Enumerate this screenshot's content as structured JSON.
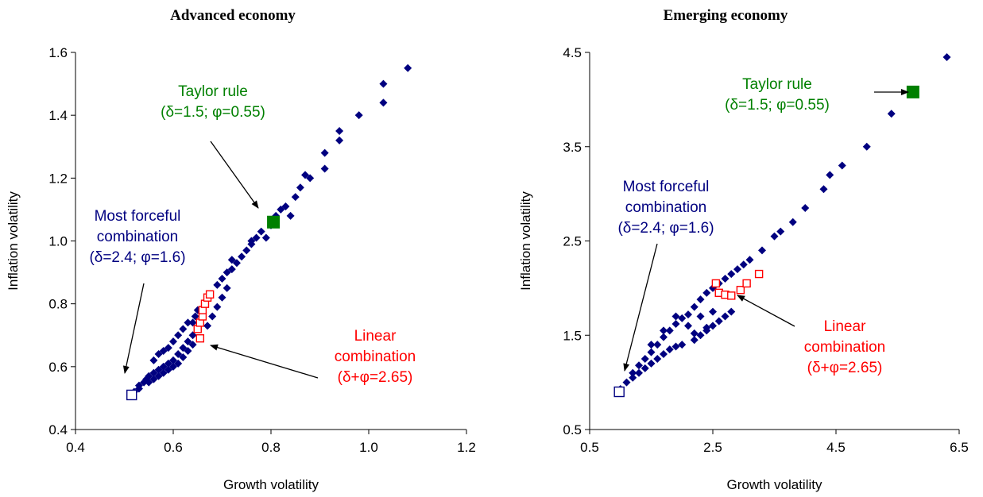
{
  "chart_data": [
    {
      "type": "scatter",
      "title": "Advanced economy",
      "xlabel": "Growth volatility",
      "ylabel": "Inflation volatility",
      "xlim": [
        0.4,
        1.2
      ],
      "ylim": [
        0.4,
        1.6
      ],
      "xticks": [
        "0.4",
        "0.6",
        "0.8",
        "1.0",
        "1.2"
      ],
      "yticks": [
        "0.4",
        "0.6",
        "0.8",
        "1.0",
        "1.2",
        "1.4",
        "1.6"
      ],
      "grid": false,
      "series": [
        {
          "marker": "diamond",
          "color": "#000080",
          "points": [
            [
              0.52,
              0.52
            ],
            [
              0.53,
              0.53
            ],
            [
              0.53,
              0.54
            ],
            [
              0.54,
              0.55
            ],
            [
              0.545,
              0.56
            ],
            [
              0.55,
              0.55
            ],
            [
              0.55,
              0.57
            ],
            [
              0.56,
              0.56
            ],
            [
              0.56,
              0.58
            ],
            [
              0.57,
              0.57
            ],
            [
              0.57,
              0.59
            ],
            [
              0.58,
              0.58
            ],
            [
              0.58,
              0.6
            ],
            [
              0.59,
              0.59
            ],
            [
              0.59,
              0.61
            ],
            [
              0.6,
              0.6
            ],
            [
              0.6,
              0.62
            ],
            [
              0.61,
              0.61
            ],
            [
              0.61,
              0.64
            ],
            [
              0.62,
              0.63
            ],
            [
              0.62,
              0.66
            ],
            [
              0.63,
              0.65
            ],
            [
              0.63,
              0.68
            ],
            [
              0.64,
              0.67
            ],
            [
              0.64,
              0.7
            ],
            [
              0.65,
              0.72
            ],
            [
              0.64,
              0.74
            ],
            [
              0.645,
              0.76
            ],
            [
              0.65,
              0.78
            ],
            [
              0.56,
              0.62
            ],
            [
              0.57,
              0.64
            ],
            [
              0.58,
              0.65
            ],
            [
              0.59,
              0.66
            ],
            [
              0.6,
              0.68
            ],
            [
              0.61,
              0.7
            ],
            [
              0.62,
              0.72
            ],
            [
              0.63,
              0.74
            ],
            [
              0.67,
              0.73
            ],
            [
              0.68,
              0.76
            ],
            [
              0.69,
              0.79
            ],
            [
              0.7,
              0.82
            ],
            [
              0.71,
              0.85
            ],
            [
              0.69,
              0.86
            ],
            [
              0.7,
              0.88
            ],
            [
              0.71,
              0.9
            ],
            [
              0.72,
              0.91
            ],
            [
              0.73,
              0.93
            ],
            [
              0.72,
              0.94
            ],
            [
              0.74,
              0.95
            ],
            [
              0.75,
              0.97
            ],
            [
              0.76,
              0.99
            ],
            [
              0.77,
              1.01
            ],
            [
              0.76,
              1.0
            ],
            [
              0.78,
              1.03
            ],
            [
              0.79,
              1.01
            ],
            [
              0.8,
              1.05
            ],
            [
              0.81,
              1.08
            ],
            [
              0.82,
              1.1
            ],
            [
              0.83,
              1.11
            ],
            [
              0.84,
              1.08
            ],
            [
              0.85,
              1.14
            ],
            [
              0.86,
              1.17
            ],
            [
              0.87,
              1.21
            ],
            [
              0.88,
              1.2
            ],
            [
              0.91,
              1.23
            ],
            [
              0.91,
              1.28
            ],
            [
              0.94,
              1.32
            ],
            [
              0.94,
              1.35
            ],
            [
              0.98,
              1.4
            ],
            [
              1.03,
              1.44
            ],
            [
              1.03,
              1.5
            ],
            [
              1.08,
              1.55
            ]
          ]
        },
        {
          "marker": "open-square",
          "color": "#ff0000",
          "points": [
            [
              0.655,
              0.69
            ],
            [
              0.65,
              0.72
            ],
            [
              0.655,
              0.74
            ],
            [
              0.66,
              0.76
            ],
            [
              0.66,
              0.78
            ],
            [
              0.665,
              0.8
            ],
            [
              0.67,
              0.82
            ],
            [
              0.675,
              0.83
            ]
          ]
        },
        {
          "marker": "filled-square",
          "color": "#008000",
          "points": [
            [
              0.805,
              1.06
            ]
          ]
        },
        {
          "marker": "open-square",
          "color": "#000080",
          "points": [
            [
              0.515,
              0.51
            ]
          ]
        }
      ],
      "annotations": [
        {
          "color": "#008000",
          "lines": [
            "Taylor rule",
            "(δ=1.5; φ=0.55)"
          ]
        },
        {
          "color": "#000080",
          "lines": [
            "Most forceful",
            "combination",
            "(δ=2.4; φ=1.6)"
          ]
        },
        {
          "color": "#ff0000",
          "lines": [
            "Linear",
            "combination",
            "(δ+φ=2.65)"
          ]
        }
      ]
    },
    {
      "type": "scatter",
      "title": "Emerging economy",
      "xlabel": "Growth volatility",
      "ylabel": "Inflation volatility",
      "xlim": [
        0.5,
        6.5
      ],
      "ylim": [
        0.5,
        4.5
      ],
      "xticks": [
        "0.5",
        "2.5",
        "4.5",
        "6.5"
      ],
      "yticks": [
        "0.5",
        "1.5",
        "2.5",
        "3.5",
        "4.5"
      ],
      "grid": false,
      "series": [
        {
          "marker": "diamond",
          "color": "#000080",
          "points": [
            [
              1.0,
              0.93
            ],
            [
              1.1,
              1.0
            ],
            [
              1.2,
              1.05
            ],
            [
              1.3,
              1.1
            ],
            [
              1.4,
              1.15
            ],
            [
              1.5,
              1.2
            ],
            [
              1.6,
              1.25
            ],
            [
              1.7,
              1.3
            ],
            [
              1.8,
              1.35
            ],
            [
              1.9,
              1.38
            ],
            [
              2.0,
              1.4
            ],
            [
              2.2,
              1.45
            ],
            [
              2.3,
              1.5
            ],
            [
              2.4,
              1.55
            ],
            [
              2.5,
              1.6
            ],
            [
              2.6,
              1.65
            ],
            [
              2.7,
              1.7
            ],
            [
              2.8,
              1.75
            ],
            [
              1.2,
              1.1
            ],
            [
              1.3,
              1.18
            ],
            [
              1.4,
              1.25
            ],
            [
              1.5,
              1.32
            ],
            [
              1.6,
              1.4
            ],
            [
              1.7,
              1.48
            ],
            [
              1.8,
              1.55
            ],
            [
              1.9,
              1.62
            ],
            [
              2.0,
              1.68
            ],
            [
              2.1,
              1.72
            ],
            [
              2.2,
              1.8
            ],
            [
              2.3,
              1.88
            ],
            [
              2.4,
              1.95
            ],
            [
              2.5,
              2.0
            ],
            [
              2.6,
              2.05
            ],
            [
              2.7,
              2.1
            ],
            [
              2.8,
              2.15
            ],
            [
              2.9,
              2.2
            ],
            [
              3.0,
              2.25
            ],
            [
              3.1,
              2.3
            ],
            [
              3.3,
              2.4
            ],
            [
              3.5,
              2.55
            ],
            [
              3.6,
              2.6
            ],
            [
              3.8,
              2.7
            ],
            [
              4.0,
              2.85
            ],
            [
              4.3,
              3.05
            ],
            [
              4.4,
              3.2
            ],
            [
              4.6,
              3.3
            ],
            [
              5.0,
              3.5
            ],
            [
              5.4,
              3.85
            ],
            [
              6.3,
              4.45
            ],
            [
              1.5,
              1.4
            ],
            [
              1.7,
              1.55
            ],
            [
              1.9,
              1.7
            ],
            [
              2.1,
              1.6
            ],
            [
              2.3,
              1.7
            ],
            [
              2.5,
              1.75
            ],
            [
              2.2,
              1.52
            ],
            [
              2.4,
              1.58
            ]
          ]
        },
        {
          "marker": "open-square",
          "color": "#ff0000",
          "points": [
            [
              2.55,
              2.05
            ],
            [
              2.6,
              1.95
            ],
            [
              2.7,
              1.93
            ],
            [
              2.8,
              1.92
            ],
            [
              2.95,
              1.98
            ],
            [
              3.05,
              2.05
            ],
            [
              3.25,
              2.15
            ]
          ]
        },
        {
          "marker": "filled-square",
          "color": "#008000",
          "points": [
            [
              5.75,
              4.08
            ]
          ]
        },
        {
          "marker": "open-square",
          "color": "#000080",
          "points": [
            [
              0.98,
              0.9
            ]
          ]
        }
      ],
      "annotations": [
        {
          "color": "#008000",
          "lines": [
            "Taylor rule",
            "(δ=1.5; φ=0.55)"
          ]
        },
        {
          "color": "#000080",
          "lines": [
            "Most forceful",
            "combination",
            "(δ=2.4; φ=1.6)"
          ]
        },
        {
          "color": "#ff0000",
          "lines": [
            "Linear",
            "combination",
            "(δ+φ=2.65)"
          ]
        }
      ]
    }
  ]
}
